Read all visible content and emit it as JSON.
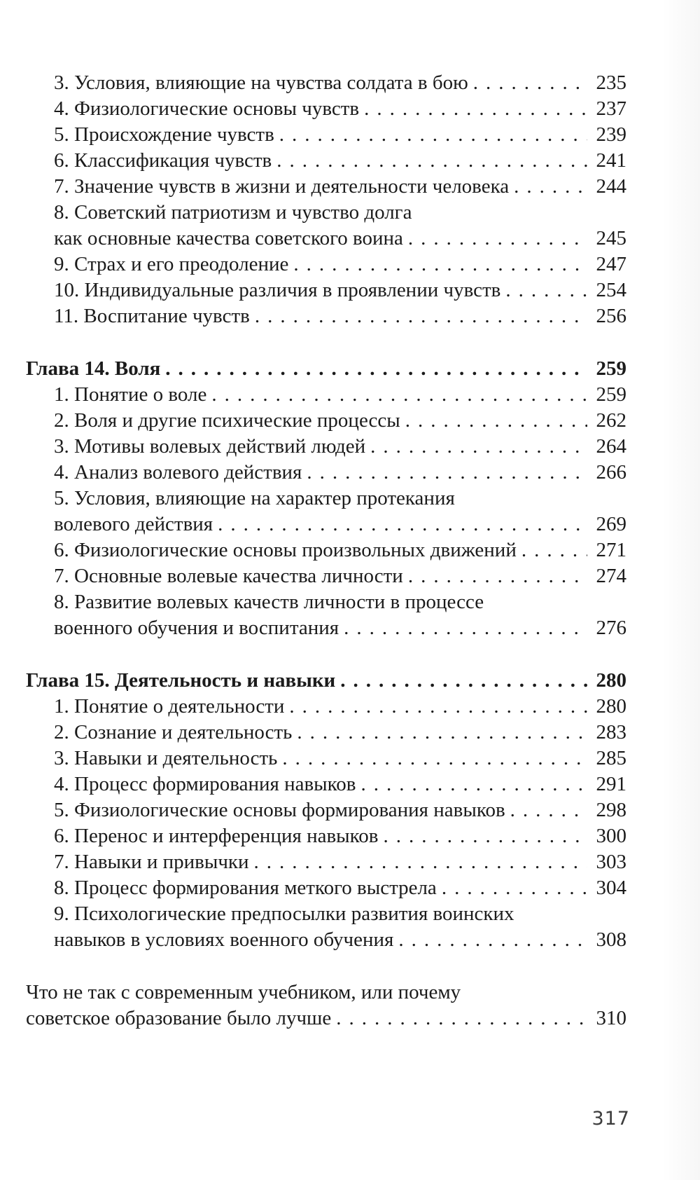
{
  "page": {
    "footer_page_number": "317"
  },
  "toc": {
    "sections": [
      {
        "type": "items",
        "entries": [
          {
            "lines": [
              "3. Условия, влияющие на чувства солдата в бою"
            ],
            "page": "235"
          },
          {
            "lines": [
              "4. Физиологические основы чувств"
            ],
            "page": "237"
          },
          {
            "lines": [
              "5. Происхождение чувств"
            ],
            "page": "239"
          },
          {
            "lines": [
              "6. Классификация чувств"
            ],
            "page": "241"
          },
          {
            "lines": [
              "7. Значение чувств в жизни и деятельности человека"
            ],
            "page": "244"
          },
          {
            "lines": [
              "8. Советский патриотизм и чувство долга",
              "как основные  качества советского воина"
            ],
            "page": "245"
          },
          {
            "lines": [
              "9. Страх и его преодоление"
            ],
            "page": "247"
          },
          {
            "lines": [
              "10. Индивидуальные различия в проявлении чувств"
            ],
            "page": "254"
          },
          {
            "lines": [
              "11. Воспитание чувств"
            ],
            "page": "256"
          }
        ]
      },
      {
        "type": "chapter",
        "heading": {
          "lines": [
            "Глава 14. Воля"
          ],
          "page": "259"
        },
        "entries": [
          {
            "lines": [
              "1. Понятие о воле"
            ],
            "page": "259"
          },
          {
            "lines": [
              "2. Воля и другие психические процессы"
            ],
            "page": "262"
          },
          {
            "lines": [
              "3. Мотивы волевых действий людей"
            ],
            "page": "264"
          },
          {
            "lines": [
              "4. Анализ волевого действия"
            ],
            "page": "266"
          },
          {
            "lines": [
              "5. Условия, влияющие на характер протекания",
              "волевого действия"
            ],
            "page": "269"
          },
          {
            "lines": [
              "6. Физиологические основы произвольных движений"
            ],
            "page": "271"
          },
          {
            "lines": [
              "7. Основные волевые качества личности"
            ],
            "page": "274"
          },
          {
            "lines": [
              "8. Развитие волевых качеств личности в процессе",
              "военного обучения и воспитания"
            ],
            "page": "276"
          }
        ]
      },
      {
        "type": "chapter",
        "heading": {
          "lines": [
            "Глава 15. Деятельность и навыки"
          ],
          "page": "280"
        },
        "entries": [
          {
            "lines": [
              "1. Понятие о деятельности"
            ],
            "page": "280"
          },
          {
            "lines": [
              "2. Сознание и деятельность"
            ],
            "page": "283"
          },
          {
            "lines": [
              "3. Навыки и деятельность"
            ],
            "page": "285"
          },
          {
            "lines": [
              "4. Процесс формирования навыков"
            ],
            "page": "291"
          },
          {
            "lines": [
              "5. Физиологические основы формирования навыков"
            ],
            "page": "298"
          },
          {
            "lines": [
              "6. Перенос и интерференция навыков"
            ],
            "page": "300"
          },
          {
            "lines": [
              "7. Навыки и привычки"
            ],
            "page": "303"
          },
          {
            "lines": [
              "8. Процесс формирования меткого выстрела"
            ],
            "page": "304"
          },
          {
            "lines": [
              "9. Психологические предпосылки развития воинских",
              "навыков в условиях военного обучения"
            ],
            "page": "308"
          }
        ]
      },
      {
        "type": "afterword",
        "heading": {
          "lines": [
            "Что не так с современным учебником, или почему",
            "советское образование было лучше"
          ],
          "page": "310"
        }
      }
    ]
  }
}
